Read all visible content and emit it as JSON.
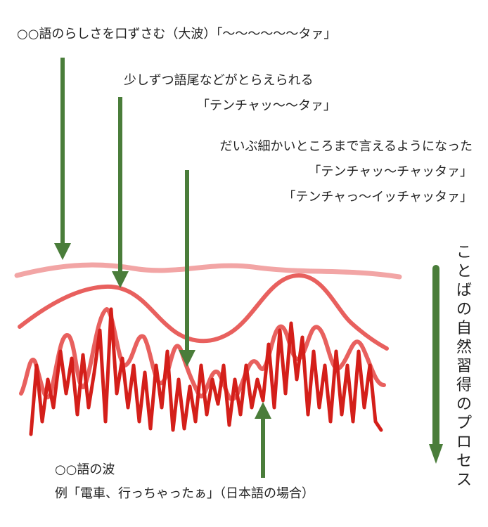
{
  "labels": {
    "top": "○○語のらしさを口ずさむ（大波）「〜〜〜〜〜〜タァ」",
    "mid1_line1": "少しずつ語尾などがとらえられる",
    "mid1_line2": "「テンチャッ〜〜タァ」",
    "mid2_line1": "だいぶ細かいところまで言えるようになった",
    "mid2_line2": "「テンチャッ〜チャッタァ」",
    "mid2_line3": "「テンチャっ〜イッチャッタァ」",
    "bottom_line1": "○○語の波",
    "bottom_line2": "例「電車、行っちゃったぁ」（日本語の場合）",
    "process": "ことばの自然習得のプロセス"
  },
  "colors": {
    "arrow": "#4a7d3a",
    "wave_light": "#f2a5a5",
    "wave_mid": "#e8605e",
    "wave_dark": "#d41f1a"
  }
}
